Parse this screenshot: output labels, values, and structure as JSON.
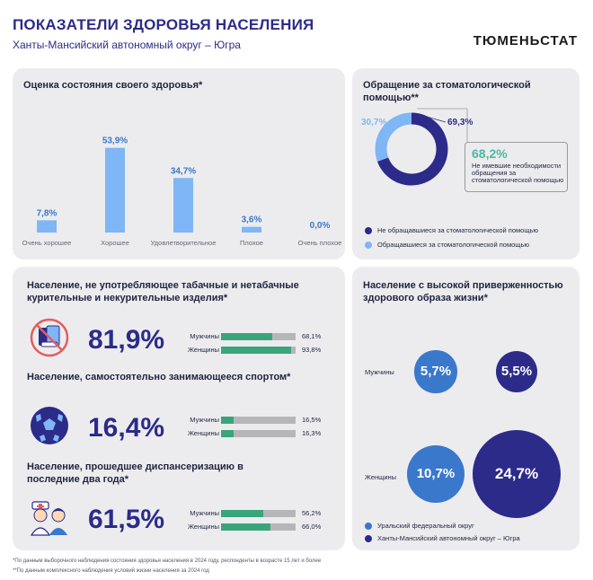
{
  "header": {
    "title": "ПОКАЗАТЕЛИ ЗДОРОВЬЯ НАСЕЛЕНИЯ",
    "subtitle": "Ханты-Мансийский автономный округ – Югра",
    "brand": "ТЮМЕНЬСТАТ"
  },
  "colors": {
    "dark": "#2c2b8a",
    "light": "#7fb6f5",
    "mid": "#3a78cc",
    "green": "#3aa57a",
    "teal": "#4fb7a3",
    "panel": "#ececee"
  },
  "chart_data": [
    {
      "type": "bar",
      "title": "Оценка состояния своего здоровья*",
      "categories": [
        "Очень хорошее",
        "Хорошее",
        "Удовлетворительное",
        "Плохое",
        "Очень плохое"
      ],
      "values": [
        7.8,
        53.9,
        34.7,
        3.6,
        0.0
      ],
      "value_labels": [
        "7,8%",
        "53,9%",
        "34,7%",
        "3,6%",
        "0,0%"
      ],
      "ylim": [
        0,
        60
      ]
    },
    {
      "type": "pie",
      "title": "Обращение за стоматологической помощью**",
      "series": [
        {
          "name": "Не обращавшиеся за стоматологической помощью",
          "value": 69.3,
          "label": "69,3%",
          "color": "#2c2b8a"
        },
        {
          "name": "Обращавшиеся за стоматологической помощью",
          "value": 30.7,
          "label": "30,7%",
          "color": "#7fb6f5"
        }
      ],
      "callout": {
        "value": "68,2%",
        "text": "Не имевшие необходимости обращения за стоматологической помощью"
      }
    },
    {
      "type": "bar",
      "title": "Население, не употребляющее табачные и нетабачные курительные и некурительные изделия*",
      "headline": "81,9%",
      "categories": [
        "Мужчины",
        "Женщины"
      ],
      "values": [
        68.1,
        93.8
      ],
      "value_labels": [
        "68,1%",
        "93,8%"
      ]
    },
    {
      "type": "bar",
      "title": "Население, самостоятельно занимающееся спортом*",
      "headline": "16,4%",
      "categories": [
        "Мужчины",
        "Женщины"
      ],
      "values": [
        16.5,
        16.3
      ],
      "value_labels": [
        "16,5%",
        "16,3%"
      ]
    },
    {
      "type": "bar",
      "title": "Население, прошедшее диспансеризацию в последние два года*",
      "headline": "61,5%",
      "categories": [
        "Мужчины",
        "Женщины"
      ],
      "values": [
        56.2,
        66.0
      ],
      "value_labels": [
        "56,2%",
        "66,0%"
      ]
    },
    {
      "type": "scatter",
      "title": "Население с высокой приверженностью здорового образа жизни*",
      "categories": [
        "Мужчины",
        "Женщины"
      ],
      "series": [
        {
          "name": "Уральский федеральный округ",
          "values": [
            5.7,
            10.7
          ],
          "labels": [
            "5,7%",
            "10,7%"
          ],
          "color": "#3a78cc"
        },
        {
          "name": "Ханты-Мансийский автономный округ – Югра",
          "values": [
            5.5,
            24.7
          ],
          "labels": [
            "5,5%",
            "24,7%"
          ],
          "color": "#2c2b8a"
        }
      ]
    }
  ],
  "footnotes": [
    "*По данным выборочного наблюдения состояния здоровья населения в 2024 году, респонденты в возрасте 15 лет и более",
    "**По данным комплексного наблюдения условий жизни населения за 2024 год"
  ],
  "icons": {
    "smoking": "no-smoking-icon",
    "sport": "soccer-ball-icon",
    "medical": "doctor-patient-icon"
  }
}
